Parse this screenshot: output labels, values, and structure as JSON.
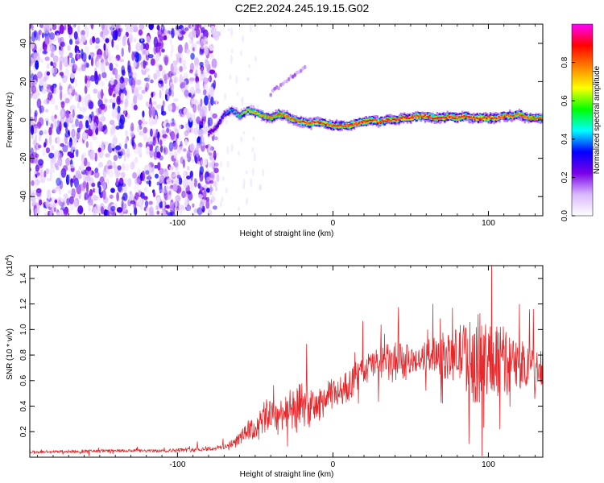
{
  "figure_title": "C2E2.2024.245.19.15.G02",
  "chart_data": [
    {
      "type": "heatmap",
      "title": "C2E2.2024.245.19.15.G02",
      "xlabel": "Height of straight line (km)",
      "ylabel": "Frequency (Hz)",
      "xlim": [
        -195,
        135
      ],
      "ylim": [
        -50,
        50
      ],
      "x_ticks": [
        -100,
        0,
        100
      ],
      "y_ticks": [
        -40,
        -20,
        0,
        20,
        40
      ],
      "noise_region": {
        "x_range": [
          -195,
          -75
        ],
        "y_range": [
          -50,
          50
        ]
      },
      "spike_region": {
        "x_range": [
          -40,
          -18
        ],
        "y_range": [
          14,
          28
        ]
      },
      "ridge": {
        "x": [
          -80,
          -75,
          -70,
          -65,
          -60,
          -55,
          -50,
          -45,
          -40,
          -35,
          -30,
          -25,
          -20,
          -15,
          -10,
          -5,
          0,
          5,
          10,
          15,
          20,
          25,
          30,
          35,
          40,
          45,
          50,
          55,
          60,
          65,
          70,
          75,
          80,
          85,
          90,
          95,
          100,
          105,
          110,
          115,
          120,
          125,
          130,
          135
        ],
        "freq": [
          -7,
          -4,
          3,
          5,
          2,
          5,
          4,
          2,
          1,
          3,
          2,
          0,
          -1,
          -2,
          -1,
          -2,
          -3,
          -3,
          -3,
          -2,
          -1,
          0,
          -1,
          0,
          0,
          1,
          1,
          2,
          2,
          1,
          1,
          2,
          1,
          2,
          1,
          1,
          1,
          1,
          2,
          2,
          3,
          1,
          1,
          1
        ],
        "amplitude": [
          0.3,
          0.35,
          0.4,
          0.45,
          0.6,
          0.7,
          0.75,
          0.78,
          0.8,
          0.85,
          0.85,
          0.88,
          0.9,
          0.9,
          0.9,
          0.9,
          0.9,
          0.9,
          0.92,
          0.92,
          0.92,
          0.92,
          0.92,
          0.92,
          0.92,
          0.95,
          0.95,
          0.92,
          0.92,
          0.92,
          0.92,
          0.9,
          0.9,
          0.9,
          0.9,
          0.9,
          0.9,
          0.9,
          0.9,
          0.9,
          0.85,
          0.85,
          0.85,
          0.85
        ]
      },
      "colorbar": {
        "label": "Normalized spectral amplitude",
        "range": [
          0,
          1
        ],
        "ticks": [
          0.0,
          0.2,
          0.4,
          0.6,
          0.8
        ],
        "tick_labels": [
          "0.0",
          "0.2",
          "0.4",
          "0.6",
          "0.8"
        ],
        "colors": [
          "#ffffff",
          "#d9b8ff",
          "#7a00e6",
          "#0000ff",
          "#00ffff",
          "#00ff00",
          "#ffff00",
          "#ff8000",
          "#ff0000",
          "#ff00ff"
        ]
      }
    },
    {
      "type": "line",
      "xlabel": "Height of straight line (km)",
      "ylabel": "SNR (10 * v/v)",
      "y_scale_label": "(x10",
      "y_scale_exponent": "4",
      "y_scale_suffix": ")",
      "xlim": [
        -195,
        135
      ],
      "ylim": [
        0,
        1.5
      ],
      "x_ticks": [
        -100,
        0,
        100
      ],
      "y_ticks": [
        0.2,
        0.4,
        0.6,
        0.8,
        1.0,
        1.2,
        1.4
      ],
      "y_tick_labels": [
        "0.2",
        "0.4",
        "0.6",
        "0.8",
        "1.0",
        "1.2",
        "1.4"
      ],
      "series": [
        {
          "name": "SNR",
          "color": "#e8272b",
          "x": [
            -195,
            -170,
            -140,
            -110,
            -90,
            -75,
            -65,
            -60,
            -55,
            -50,
            -45,
            -40,
            -35,
            -30,
            -25,
            -20,
            -15,
            -10,
            -5,
            0,
            5,
            10,
            15,
            20,
            25,
            30,
            35,
            40,
            45,
            50,
            55,
            60,
            65,
            70,
            75,
            80,
            85,
            90,
            95,
            100,
            105,
            110,
            115,
            120,
            125,
            130,
            135
          ],
          "baseline": [
            0.04,
            0.045,
            0.05,
            0.05,
            0.06,
            0.07,
            0.1,
            0.15,
            0.2,
            0.22,
            0.3,
            0.35,
            0.32,
            0.38,
            0.35,
            0.42,
            0.38,
            0.4,
            0.45,
            0.5,
            0.52,
            0.56,
            0.62,
            0.68,
            0.72,
            0.75,
            0.74,
            0.72,
            0.74,
            0.76,
            0.75,
            0.8,
            0.82,
            0.8,
            0.78,
            0.82,
            0.8,
            0.75,
            0.78,
            0.72,
            0.8,
            0.75,
            0.72,
            0.7,
            0.75,
            0.7,
            0.72
          ],
          "noise": [
            0.02,
            0.02,
            0.02,
            0.02,
            0.03,
            0.03,
            0.05,
            0.08,
            0.12,
            0.15,
            0.2,
            0.25,
            0.2,
            0.25,
            0.3,
            0.3,
            0.25,
            0.2,
            0.22,
            0.2,
            0.2,
            0.2,
            0.22,
            0.2,
            0.2,
            0.2,
            0.25,
            0.3,
            0.3,
            0.15,
            0.15,
            0.2,
            0.25,
            0.3,
            0.3,
            0.35,
            0.45,
            0.55,
            0.6,
            0.6,
            0.55,
            0.45,
            0.4,
            0.35,
            0.3,
            0.25,
            0.25
          ]
        }
      ]
    }
  ]
}
